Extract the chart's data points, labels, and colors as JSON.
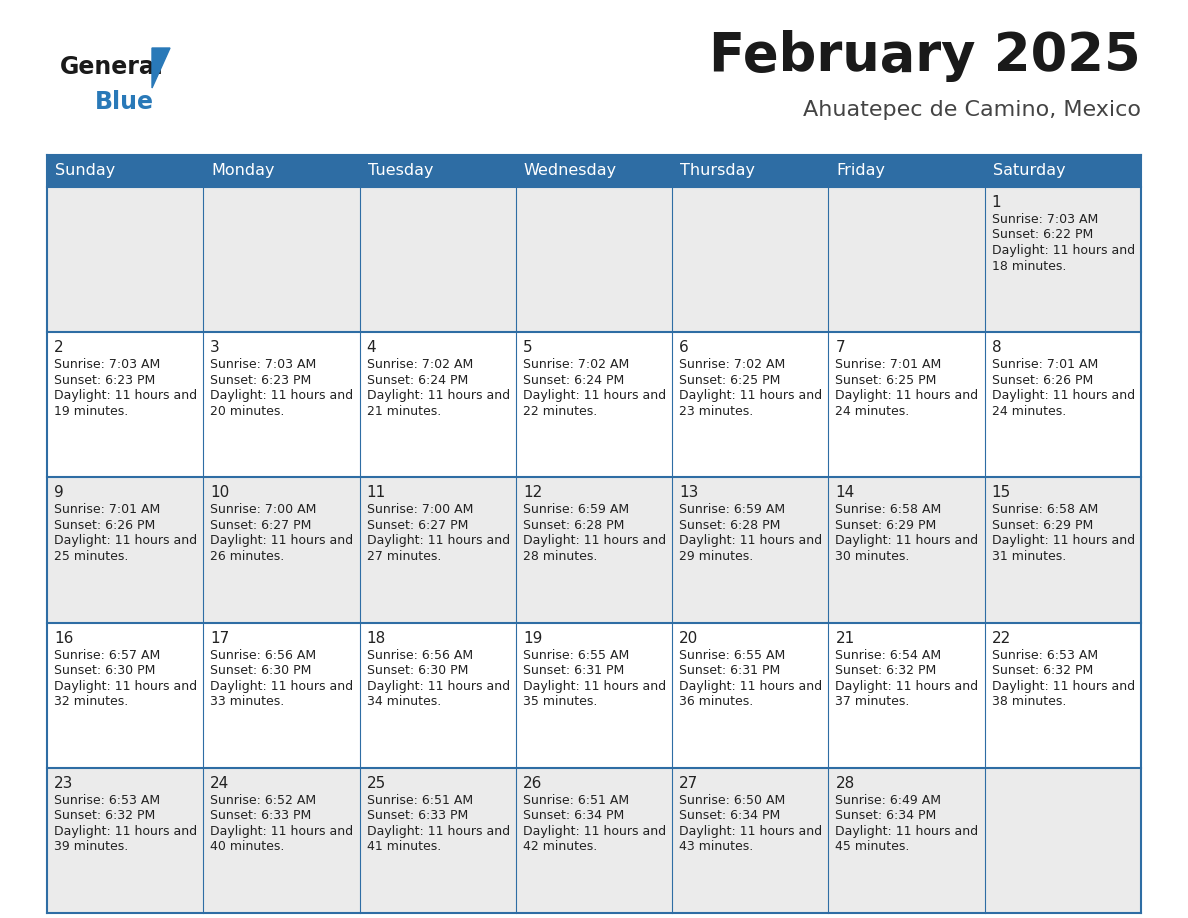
{
  "title": "February 2025",
  "subtitle": "Ahuatepec de Camino, Mexico",
  "header_bg": "#2e6da4",
  "header_text": "#ffffff",
  "day_names": [
    "Sunday",
    "Monday",
    "Tuesday",
    "Wednesday",
    "Thursday",
    "Friday",
    "Saturday"
  ],
  "bg_color": "#ffffff",
  "cell_bg_odd": "#ebebeb",
  "cell_bg_even": "#ffffff",
  "cell_text_color": "#222222",
  "border_color": "#2e6da4",
  "logo_general_color": "#1a1a1a",
  "logo_blue_color": "#2979b8",
  "days": [
    {
      "day": 1,
      "col": 6,
      "row": 0,
      "sunrise": "7:03 AM",
      "sunset": "6:22 PM",
      "daylight": "11 hours and 18 minutes."
    },
    {
      "day": 2,
      "col": 0,
      "row": 1,
      "sunrise": "7:03 AM",
      "sunset": "6:23 PM",
      "daylight": "11 hours and 19 minutes."
    },
    {
      "day": 3,
      "col": 1,
      "row": 1,
      "sunrise": "7:03 AM",
      "sunset": "6:23 PM",
      "daylight": "11 hours and 20 minutes."
    },
    {
      "day": 4,
      "col": 2,
      "row": 1,
      "sunrise": "7:02 AM",
      "sunset": "6:24 PM",
      "daylight": "11 hours and 21 minutes."
    },
    {
      "day": 5,
      "col": 3,
      "row": 1,
      "sunrise": "7:02 AM",
      "sunset": "6:24 PM",
      "daylight": "11 hours and 22 minutes."
    },
    {
      "day": 6,
      "col": 4,
      "row": 1,
      "sunrise": "7:02 AM",
      "sunset": "6:25 PM",
      "daylight": "11 hours and 23 minutes."
    },
    {
      "day": 7,
      "col": 5,
      "row": 1,
      "sunrise": "7:01 AM",
      "sunset": "6:25 PM",
      "daylight": "11 hours and 24 minutes."
    },
    {
      "day": 8,
      "col": 6,
      "row": 1,
      "sunrise": "7:01 AM",
      "sunset": "6:26 PM",
      "daylight": "11 hours and 24 minutes."
    },
    {
      "day": 9,
      "col": 0,
      "row": 2,
      "sunrise": "7:01 AM",
      "sunset": "6:26 PM",
      "daylight": "11 hours and 25 minutes."
    },
    {
      "day": 10,
      "col": 1,
      "row": 2,
      "sunrise": "7:00 AM",
      "sunset": "6:27 PM",
      "daylight": "11 hours and 26 minutes."
    },
    {
      "day": 11,
      "col": 2,
      "row": 2,
      "sunrise": "7:00 AM",
      "sunset": "6:27 PM",
      "daylight": "11 hours and 27 minutes."
    },
    {
      "day": 12,
      "col": 3,
      "row": 2,
      "sunrise": "6:59 AM",
      "sunset": "6:28 PM",
      "daylight": "11 hours and 28 minutes."
    },
    {
      "day": 13,
      "col": 4,
      "row": 2,
      "sunrise": "6:59 AM",
      "sunset": "6:28 PM",
      "daylight": "11 hours and 29 minutes."
    },
    {
      "day": 14,
      "col": 5,
      "row": 2,
      "sunrise": "6:58 AM",
      "sunset": "6:29 PM",
      "daylight": "11 hours and 30 minutes."
    },
    {
      "day": 15,
      "col": 6,
      "row": 2,
      "sunrise": "6:58 AM",
      "sunset": "6:29 PM",
      "daylight": "11 hours and 31 minutes."
    },
    {
      "day": 16,
      "col": 0,
      "row": 3,
      "sunrise": "6:57 AM",
      "sunset": "6:30 PM",
      "daylight": "11 hours and 32 minutes."
    },
    {
      "day": 17,
      "col": 1,
      "row": 3,
      "sunrise": "6:56 AM",
      "sunset": "6:30 PM",
      "daylight": "11 hours and 33 minutes."
    },
    {
      "day": 18,
      "col": 2,
      "row": 3,
      "sunrise": "6:56 AM",
      "sunset": "6:30 PM",
      "daylight": "11 hours and 34 minutes."
    },
    {
      "day": 19,
      "col": 3,
      "row": 3,
      "sunrise": "6:55 AM",
      "sunset": "6:31 PM",
      "daylight": "11 hours and 35 minutes."
    },
    {
      "day": 20,
      "col": 4,
      "row": 3,
      "sunrise": "6:55 AM",
      "sunset": "6:31 PM",
      "daylight": "11 hours and 36 minutes."
    },
    {
      "day": 21,
      "col": 5,
      "row": 3,
      "sunrise": "6:54 AM",
      "sunset": "6:32 PM",
      "daylight": "11 hours and 37 minutes."
    },
    {
      "day": 22,
      "col": 6,
      "row": 3,
      "sunrise": "6:53 AM",
      "sunset": "6:32 PM",
      "daylight": "11 hours and 38 minutes."
    },
    {
      "day": 23,
      "col": 0,
      "row": 4,
      "sunrise": "6:53 AM",
      "sunset": "6:32 PM",
      "daylight": "11 hours and 39 minutes."
    },
    {
      "day": 24,
      "col": 1,
      "row": 4,
      "sunrise": "6:52 AM",
      "sunset": "6:33 PM",
      "daylight": "11 hours and 40 minutes."
    },
    {
      "day": 25,
      "col": 2,
      "row": 4,
      "sunrise": "6:51 AM",
      "sunset": "6:33 PM",
      "daylight": "11 hours and 41 minutes."
    },
    {
      "day": 26,
      "col": 3,
      "row": 4,
      "sunrise": "6:51 AM",
      "sunset": "6:34 PM",
      "daylight": "11 hours and 42 minutes."
    },
    {
      "day": 27,
      "col": 4,
      "row": 4,
      "sunrise": "6:50 AM",
      "sunset": "6:34 PM",
      "daylight": "11 hours and 43 minutes."
    },
    {
      "day": 28,
      "col": 5,
      "row": 4,
      "sunrise": "6:49 AM",
      "sunset": "6:34 PM",
      "daylight": "11 hours and 45 minutes."
    }
  ]
}
